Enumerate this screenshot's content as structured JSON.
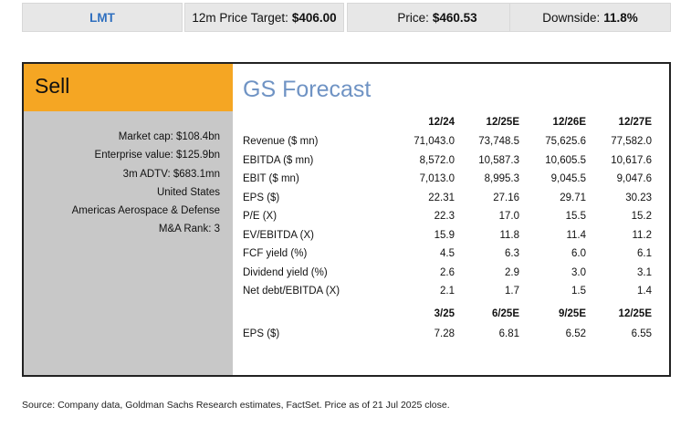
{
  "topbar": {
    "ticker": "LMT",
    "target_label": "12m Price Target:",
    "target_value": "$406.00",
    "price_label": "Price:",
    "price_value": "$460.53",
    "downside_label": "Downside:",
    "downside_value": "11.8%"
  },
  "rating": "Sell",
  "facts": [
    "Market cap: $108.4bn",
    "Enterprise value: $125.9bn",
    "3m ADTV: $683.1mn",
    "United States",
    "Americas Aerospace & Defense",
    "M&A Rank: 3"
  ],
  "forecast": {
    "title": "GS Forecast",
    "annual_headers": [
      "12/24",
      "12/25E",
      "12/26E",
      "12/27E"
    ],
    "annual_rows": [
      {
        "label": "Revenue ($ mn)",
        "values": [
          "71,043.0",
          "73,748.5",
          "75,625.6",
          "77,582.0"
        ]
      },
      {
        "label": "EBITDA ($ mn)",
        "values": [
          "8,572.0",
          "10,587.3",
          "10,605.5",
          "10,617.6"
        ]
      },
      {
        "label": "EBIT ($ mn)",
        "values": [
          "7,013.0",
          "8,995.3",
          "9,045.5",
          "9,047.6"
        ]
      },
      {
        "label": "EPS ($)",
        "values": [
          "22.31",
          "27.16",
          "29.71",
          "30.23"
        ]
      },
      {
        "label": "P/E (X)",
        "values": [
          "22.3",
          "17.0",
          "15.5",
          "15.2"
        ]
      },
      {
        "label": "EV/EBITDA (X)",
        "values": [
          "15.9",
          "11.8",
          "11.4",
          "11.2"
        ]
      },
      {
        "label": "FCF yield (%)",
        "values": [
          "4.5",
          "6.3",
          "6.0",
          "6.1"
        ]
      },
      {
        "label": "Dividend yield (%)",
        "values": [
          "2.6",
          "2.9",
          "3.0",
          "3.1"
        ]
      },
      {
        "label": "Net debt/EBITDA (X)",
        "values": [
          "2.1",
          "1.7",
          "1.5",
          "1.4"
        ]
      }
    ],
    "quarter_headers": [
      "3/25",
      "6/25E",
      "9/25E",
      "12/25E"
    ],
    "quarter_rows": [
      {
        "label": "EPS ($)",
        "values": [
          "7.28",
          "6.81",
          "6.52",
          "6.55"
        ]
      }
    ]
  },
  "source": "Source: Company data, Goldman Sachs Research estimates, FactSet. Price as of 21 Jul 2025 close."
}
